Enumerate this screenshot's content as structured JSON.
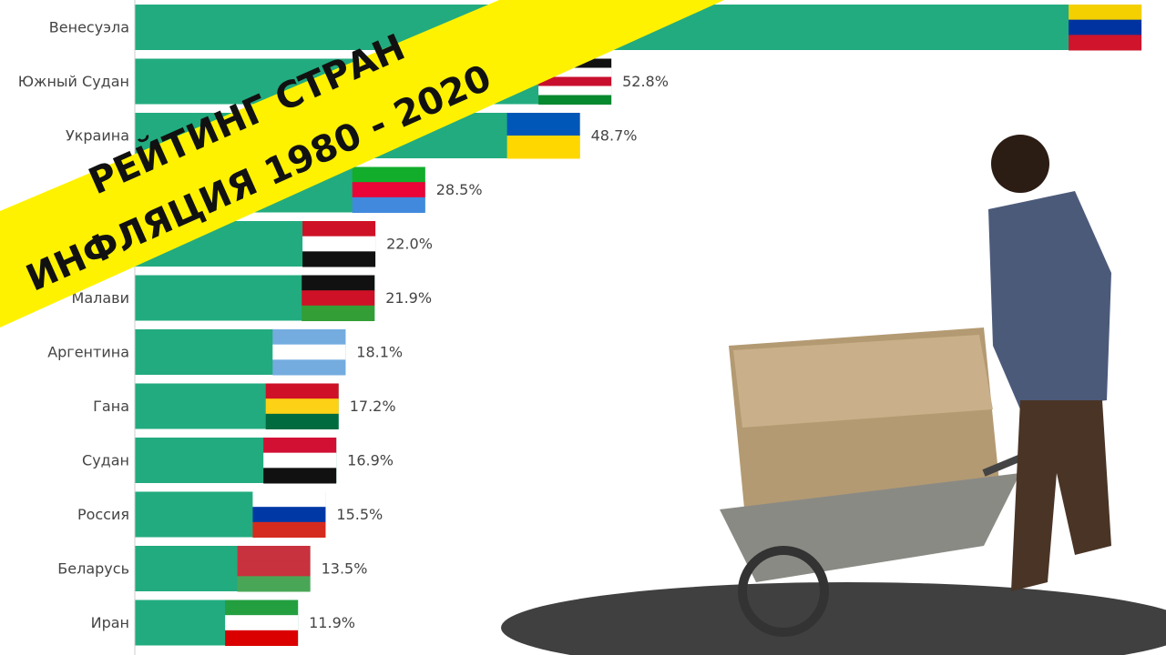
{
  "chart_data": {
    "type": "bar",
    "orientation": "horizontal",
    "categories": [
      "Венесуэла",
      "Южный Судан",
      "Украина",
      null,
      null,
      "Малави",
      "Аргентина",
      "Гана",
      "Судан",
      "Россия",
      "Беларусь",
      "Иран"
    ],
    "values": [
      122,
      52.8,
      48.7,
      28.5,
      22.0,
      21.9,
      18.1,
      17.2,
      16.9,
      15.5,
      13.5,
      11.9
    ],
    "value_labels": [
      null,
      "52.8%",
      "48.7%",
      "28.5%",
      "22.0%",
      "21.9%",
      "18.1%",
      "17.2%",
      "16.9%",
      "15.5%",
      "13.5%",
      "11.9%"
    ],
    "color": "#22ab7f",
    "xlim": [
      -9.4,
      125.2
    ]
  },
  "banner": {
    "line1": "РЕЙТИНГ СТРАН",
    "line2": "ИНФЛЯЦИЯ 1980 - 2020"
  }
}
